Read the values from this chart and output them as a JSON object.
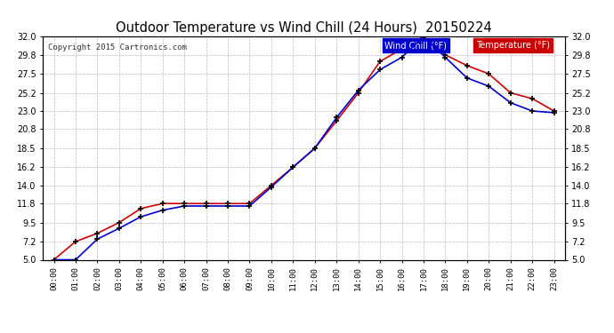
{
  "title": "Outdoor Temperature vs Wind Chill (24 Hours)  20150224",
  "copyright": "Copyright 2015 Cartronics.com",
  "background_color": "#ffffff",
  "plot_bg_color": "#ffffff",
  "grid_color": "#bbbbbb",
  "x_labels": [
    "00:00",
    "01:00",
    "02:00",
    "03:00",
    "04:00",
    "05:00",
    "06:00",
    "07:00",
    "08:00",
    "09:00",
    "10:00",
    "11:00",
    "12:00",
    "13:00",
    "14:00",
    "15:00",
    "16:00",
    "17:00",
    "18:00",
    "19:00",
    "20:00",
    "21:00",
    "22:00",
    "23:00"
  ],
  "temperature": [
    5.0,
    7.2,
    8.2,
    9.5,
    11.2,
    11.8,
    11.8,
    11.8,
    11.8,
    11.8,
    14.0,
    16.2,
    18.5,
    21.8,
    25.2,
    29.0,
    30.5,
    32.0,
    29.8,
    28.5,
    27.5,
    25.2,
    24.5,
    23.0
  ],
  "wind_chill": [
    5.0,
    5.0,
    7.5,
    8.8,
    10.2,
    11.0,
    11.5,
    11.5,
    11.5,
    11.5,
    13.8,
    16.2,
    18.5,
    22.2,
    25.5,
    28.0,
    29.5,
    32.0,
    29.5,
    27.0,
    26.0,
    24.0,
    23.0,
    22.8
  ],
  "temp_color": "#cc0000",
  "wind_chill_color": "#0000cc",
  "marker_color": "#000000",
  "ylim_min": 5.0,
  "ylim_max": 32.0,
  "yticks": [
    5.0,
    7.2,
    9.5,
    11.8,
    14.0,
    16.2,
    18.5,
    20.8,
    23.0,
    25.2,
    27.5,
    29.8,
    32.0
  ],
  "legend_wind_chill_bg": "#0000cc",
  "legend_temp_bg": "#cc0000",
  "legend_wind_chill_text": "Wind Chill (°F)",
  "legend_temp_text": "Temperature (°F)"
}
